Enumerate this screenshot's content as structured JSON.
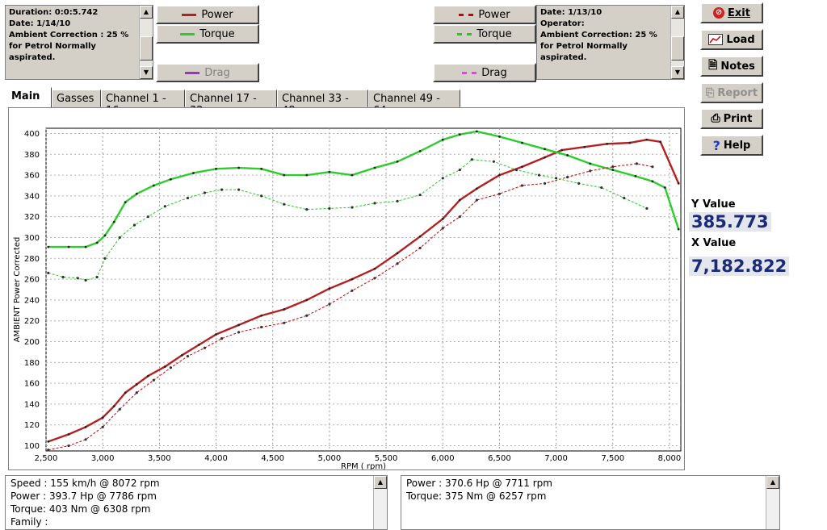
{
  "left_info": {
    "lines": "Duration: 0:0:5.742\nDate:  1/14/10\nAmbient Correction : 25 %\n for Petrol Normally\naspirated."
  },
  "right_info": {
    "lines": "Date:  1/13/10\nOperator:\nAmbient Correction: 25 %\n for Petrol Normally\naspirated."
  },
  "legend_left": {
    "power": "Power",
    "torque": "Torque",
    "drag": "Drag"
  },
  "legend_right": {
    "power": "Power",
    "torque": "Torque",
    "drag": "Drag"
  },
  "colors": {
    "power_run1": "#b22222",
    "torque_run1": "#2ecc2e",
    "power_run2": "#cc0000",
    "torque_run2": "#22cc22",
    "drag_run1": "#9933cc",
    "drag_run2": "#ff33ff"
  },
  "tabs": [
    "Main",
    "Gasses",
    "Channel 1 - 16",
    "Channel 17 - 32",
    "Channel 33 - 48",
    "Channel 49 - 64"
  ],
  "side_buttons": {
    "exit": "Exit",
    "load": "Load",
    "notes": "Notes",
    "report": "Report",
    "print": "Print",
    "help": "Help"
  },
  "readout": {
    "y_label": "Y Value",
    "y_value": "385.773",
    "x_label": "X Value",
    "x_value": "7,182.822"
  },
  "bottom_left": {
    "text": "Speed : 155 km/h @ 8072 rpm\nPower : 393.7 Hp @ 7786 rpm\nTorque: 403 Nm @ 6308 rpm\nFamily :"
  },
  "bottom_right": {
    "text": "Power : 370.6 Hp @ 7711 rpm\nTorque: 375 Nm @ 6257 rpm"
  },
  "chart_data": {
    "type": "line",
    "xlabel": "RPM ( rpm)",
    "ylabel": "AMBIENT Power Corrected",
    "xlim": [
      2500,
      8100
    ],
    "ylim": [
      95,
      405
    ],
    "xticks": [
      2500,
      3000,
      3500,
      4000,
      4500,
      5000,
      5500,
      6000,
      6500,
      7000,
      7500,
      8000
    ],
    "xtick_labels": [
      "2,500",
      "3,000",
      "3,500",
      "4,000",
      "4,500",
      "5,000",
      "5,500",
      "6,000",
      "6,500",
      "7,000",
      "7,500",
      "8,000"
    ],
    "yticks": [
      100,
      120,
      140,
      160,
      180,
      200,
      220,
      240,
      260,
      280,
      300,
      320,
      340,
      360,
      380,
      400
    ],
    "ytick_labels": [
      "100",
      "120",
      "140",
      "160",
      "180",
      "200",
      "220",
      "240",
      "260",
      "280",
      "300",
      "320",
      "340",
      "360",
      "380",
      "400"
    ],
    "grid": true,
    "series": [
      {
        "key": "power_run1",
        "style": "solid",
        "x": [
          2520,
          2700,
          2850,
          3000,
          3100,
          3200,
          3300,
          3400,
          3550,
          3700,
          3850,
          4000,
          4200,
          4400,
          4600,
          4800,
          5000,
          5200,
          5400,
          5600,
          5800,
          6000,
          6150,
          6300,
          6500,
          6700,
          6900,
          7050,
          7250,
          7450,
          7650,
          7800,
          7920,
          8080
        ],
        "y": [
          104,
          111,
          118,
          127,
          138,
          151,
          159,
          167,
          176,
          187,
          197,
          207,
          216,
          225,
          231,
          240,
          251,
          260,
          270,
          285,
          301,
          318,
          336,
          347,
          360,
          368,
          377,
          384,
          387,
          390,
          391,
          394,
          392,
          352
        ]
      },
      {
        "key": "torque_run1",
        "style": "solid",
        "x": [
          2520,
          2700,
          2850,
          2950,
          3020,
          3100,
          3200,
          3300,
          3450,
          3600,
          3800,
          4000,
          4200,
          4400,
          4600,
          4800,
          5000,
          5200,
          5400,
          5600,
          5800,
          6000,
          6150,
          6300,
          6500,
          6700,
          6900,
          7100,
          7300,
          7500,
          7700,
          7850,
          7960,
          8080
        ],
        "y": [
          291,
          291,
          291,
          295,
          302,
          315,
          334,
          342,
          350,
          356,
          362,
          366,
          367,
          366,
          360,
          360,
          363,
          360,
          367,
          373,
          383,
          394,
          399,
          402,
          397,
          391,
          385,
          379,
          371,
          365,
          359,
          354,
          348,
          308
        ]
      },
      {
        "key": "power_run2",
        "style": "dashed",
        "x": [
          2520,
          2700,
          2850,
          3000,
          3150,
          3300,
          3450,
          3600,
          3750,
          3900,
          4050,
          4200,
          4400,
          4600,
          4800,
          5000,
          5200,
          5400,
          5600,
          5800,
          6000,
          6150,
          6300,
          6500,
          6700,
          6900,
          7100,
          7300,
          7500,
          7711,
          7850
        ],
        "y": [
          96,
          100,
          106,
          118,
          135,
          151,
          163,
          175,
          186,
          194,
          203,
          209,
          214,
          218,
          225,
          236,
          249,
          261,
          275,
          290,
          309,
          320,
          336,
          342,
          350,
          352,
          358,
          364,
          368,
          371,
          368
        ]
      },
      {
        "key": "torque_run2",
        "style": "dashed",
        "x": [
          2520,
          2650,
          2780,
          2850,
          2950,
          3020,
          3150,
          3280,
          3400,
          3550,
          3750,
          3900,
          4050,
          4200,
          4400,
          4600,
          4800,
          5000,
          5200,
          5400,
          5600,
          5800,
          6000,
          6150,
          6257,
          6450,
          6650,
          6850,
          7000,
          7200,
          7400,
          7600,
          7800
        ],
        "y": [
          266,
          262,
          261,
          259,
          262,
          280,
          300,
          312,
          320,
          330,
          338,
          343,
          346,
          346,
          340,
          332,
          327,
          328,
          329,
          333,
          335,
          341,
          357,
          365,
          375,
          373,
          365,
          360,
          357,
          352,
          348,
          338,
          328
        ]
      }
    ]
  }
}
